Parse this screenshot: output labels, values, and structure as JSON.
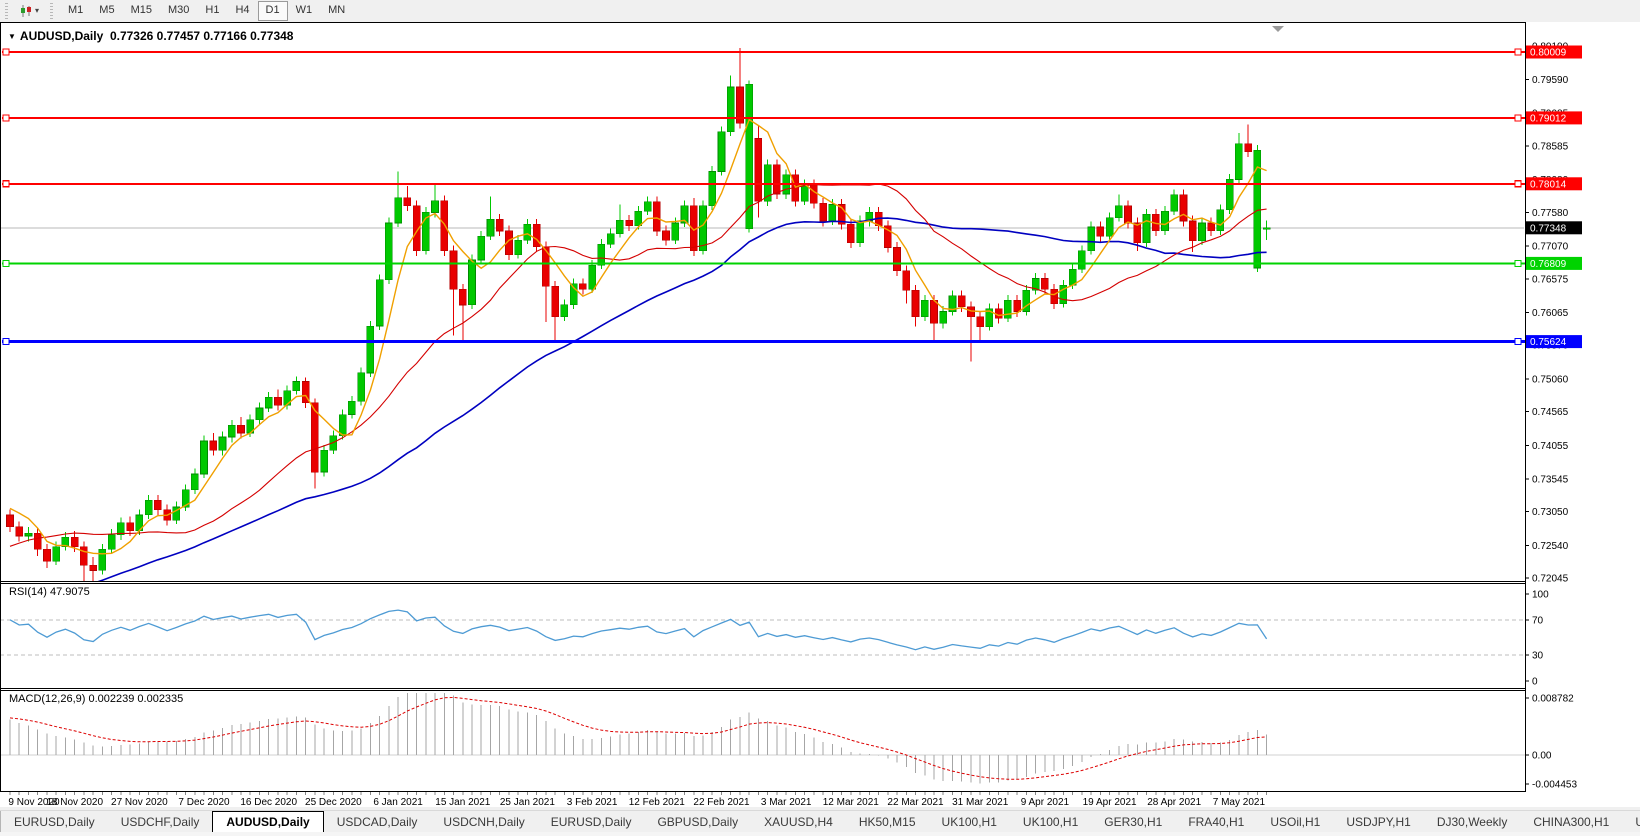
{
  "icons": {
    "collapse_caret": "▼",
    "dropdown_caret": "▾",
    "scroll_left": "◄",
    "scroll_right": "►"
  },
  "toolbar": {
    "timeframes": [
      {
        "label": "M1",
        "active": false
      },
      {
        "label": "M5",
        "active": false
      },
      {
        "label": "M15",
        "active": false
      },
      {
        "label": "M30",
        "active": false
      },
      {
        "label": "H1",
        "active": false
      },
      {
        "label": "H4",
        "active": false
      },
      {
        "label": "D1",
        "active": true
      },
      {
        "label": "W1",
        "active": false
      },
      {
        "label": "MN",
        "active": false
      }
    ]
  },
  "chart": {
    "title_symbol": "AUDUSD,Daily",
    "title_ohlc": "0.77326 0.77457 0.77166 0.77348",
    "price_axis_ticks": [
      "0.80100",
      "0.79590",
      "0.79085",
      "0.78585",
      "0.78080",
      "0.77580",
      "0.77070",
      "0.76575",
      "0.76065",
      "0.75570",
      "0.75060",
      "0.74565",
      "0.74055",
      "0.73545",
      "0.73050",
      "0.72540",
      "0.72045"
    ],
    "hlines": [
      {
        "label": "0.80009",
        "value": 0.80009,
        "color": "#FF0000",
        "width": 2
      },
      {
        "label": "0.79012",
        "value": 0.79012,
        "color": "#FF0000",
        "width": 2
      },
      {
        "label": "0.78014",
        "value": 0.78014,
        "color": "#FF0000",
        "width": 2
      },
      {
        "label": "0.76809",
        "value": 0.76809,
        "color": "#00D300",
        "width": 2
      },
      {
        "label": "0.75624",
        "value": 0.75624,
        "color": "#0000FF",
        "width": 3
      }
    ],
    "current_price": {
      "label": "0.77348",
      "value": 0.77348,
      "bg": "#000000"
    },
    "dates": [
      "9 Nov 2020",
      "18 Nov 2020",
      "27 Nov 2020",
      "7 Dec 2020",
      "16 Dec 2020",
      "25 Dec 2020",
      "6 Jan 2021",
      "15 Jan 2021",
      "25 Jan 2021",
      "3 Feb 2021",
      "12 Feb 2021",
      "22 Feb 2021",
      "3 Mar 2021",
      "12 Mar 2021",
      "22 Mar 2021",
      "31 Mar 2021",
      "9 Apr 2021",
      "19 Apr 2021",
      "28 Apr 2021",
      "7 May 2021"
    ],
    "date_tick_step": 7,
    "candles": [
      [
        0.73,
        0.7308,
        0.7274,
        0.7282
      ],
      [
        0.7282,
        0.729,
        0.726,
        0.7268
      ],
      [
        0.7268,
        0.7282,
        0.726,
        0.7272
      ],
      [
        0.7272,
        0.728,
        0.7238,
        0.7248
      ],
      [
        0.7248,
        0.7256,
        0.722,
        0.723
      ],
      [
        0.723,
        0.726,
        0.7224,
        0.7252
      ],
      [
        0.7252,
        0.7274,
        0.7246,
        0.7266
      ],
      [
        0.7266,
        0.7276,
        0.7244,
        0.7252
      ],
      [
        0.7252,
        0.726,
        0.717,
        0.7224
      ],
      [
        0.7224,
        0.7236,
        0.7185,
        0.7216
      ],
      [
        0.7216,
        0.7256,
        0.721,
        0.7248
      ],
      [
        0.7248,
        0.7279,
        0.7242,
        0.727
      ],
      [
        0.727,
        0.7296,
        0.7262,
        0.7288
      ],
      [
        0.7288,
        0.7298,
        0.7268,
        0.7276
      ],
      [
        0.7276,
        0.7308,
        0.727,
        0.73
      ],
      [
        0.73,
        0.733,
        0.7294,
        0.7322
      ],
      [
        0.7322,
        0.733,
        0.73,
        0.7308
      ],
      [
        0.7308,
        0.7316,
        0.7284,
        0.7292
      ],
      [
        0.7292,
        0.732,
        0.7286,
        0.7312
      ],
      [
        0.7312,
        0.7346,
        0.7306,
        0.7338
      ],
      [
        0.7338,
        0.737,
        0.7332,
        0.7362
      ],
      [
        0.7362,
        0.742,
        0.7356,
        0.7412
      ],
      [
        0.7412,
        0.7424,
        0.739,
        0.7398
      ],
      [
        0.7398,
        0.7426,
        0.739,
        0.7418
      ],
      [
        0.7418,
        0.7444,
        0.741,
        0.7436
      ],
      [
        0.7436,
        0.7448,
        0.7416,
        0.7424
      ],
      [
        0.7424,
        0.7452,
        0.7418,
        0.7444
      ],
      [
        0.7444,
        0.747,
        0.7438,
        0.7462
      ],
      [
        0.7462,
        0.7486,
        0.7456,
        0.7478
      ],
      [
        0.7478,
        0.749,
        0.7458,
        0.7466
      ],
      [
        0.7466,
        0.7496,
        0.746,
        0.7488
      ],
      [
        0.7488,
        0.751,
        0.7482,
        0.7502
      ],
      [
        0.7502,
        0.7508,
        0.7462,
        0.747
      ],
      [
        0.747,
        0.7476,
        0.734,
        0.7365
      ],
      [
        0.7365,
        0.7406,
        0.7358,
        0.7398
      ],
      [
        0.7398,
        0.7428,
        0.7392,
        0.742
      ],
      [
        0.742,
        0.746,
        0.7414,
        0.7452
      ],
      [
        0.7452,
        0.748,
        0.7446,
        0.7472
      ],
      [
        0.7472,
        0.7523,
        0.7466,
        0.7515
      ],
      [
        0.7515,
        0.7594,
        0.7509,
        0.7586
      ],
      [
        0.7586,
        0.7664,
        0.758,
        0.7656
      ],
      [
        0.7656,
        0.775,
        0.765,
        0.7742
      ],
      [
        0.7742,
        0.782,
        0.7736,
        0.778
      ],
      [
        0.778,
        0.7798,
        0.776,
        0.7768
      ],
      [
        0.7768,
        0.7776,
        0.7692,
        0.77
      ],
      [
        0.77,
        0.7766,
        0.7694,
        0.7758
      ],
      [
        0.7758,
        0.78,
        0.775,
        0.7776
      ],
      [
        0.7776,
        0.7784,
        0.7692,
        0.77
      ],
      [
        0.77,
        0.7708,
        0.7572,
        0.7642
      ],
      [
        0.7642,
        0.765,
        0.756,
        0.7618
      ],
      [
        0.7618,
        0.7694,
        0.7612,
        0.7686
      ],
      [
        0.7686,
        0.773,
        0.768,
        0.7722
      ],
      [
        0.7722,
        0.7782,
        0.7716,
        0.7748
      ],
      [
        0.7748,
        0.7756,
        0.7722,
        0.773
      ],
      [
        0.773,
        0.7738,
        0.7686,
        0.7694
      ],
      [
        0.7694,
        0.7724,
        0.7688,
        0.7716
      ],
      [
        0.7716,
        0.7748,
        0.771,
        0.774
      ],
      [
        0.774,
        0.7748,
        0.7698,
        0.7706
      ],
      [
        0.7706,
        0.7714,
        0.7592,
        0.7646
      ],
      [
        0.7646,
        0.7654,
        0.7564,
        0.76
      ],
      [
        0.76,
        0.7626,
        0.7594,
        0.7618
      ],
      [
        0.7618,
        0.7658,
        0.7612,
        0.765
      ],
      [
        0.765,
        0.7658,
        0.7634,
        0.7642
      ],
      [
        0.7642,
        0.7686,
        0.7636,
        0.7678
      ],
      [
        0.7678,
        0.7718,
        0.7672,
        0.771
      ],
      [
        0.771,
        0.7734,
        0.7704,
        0.7726
      ],
      [
        0.7726,
        0.777,
        0.772,
        0.7746
      ],
      [
        0.7746,
        0.7754,
        0.773,
        0.7738
      ],
      [
        0.7738,
        0.7768,
        0.7732,
        0.776
      ],
      [
        0.776,
        0.7782,
        0.7754,
        0.7774
      ],
      [
        0.7774,
        0.7782,
        0.7722,
        0.773
      ],
      [
        0.773,
        0.7738,
        0.7708,
        0.7716
      ],
      [
        0.7716,
        0.775,
        0.771,
        0.7742
      ],
      [
        0.7742,
        0.7776,
        0.7736,
        0.7768
      ],
      [
        0.7768,
        0.778,
        0.7692,
        0.77
      ],
      [
        0.77,
        0.7776,
        0.7694,
        0.7768
      ],
      [
        0.7768,
        0.7828,
        0.7762,
        0.782
      ],
      [
        0.782,
        0.7888,
        0.7814,
        0.788
      ],
      [
        0.788,
        0.7965,
        0.7874,
        0.7948
      ],
      [
        0.7948,
        0.8007,
        0.7885,
        0.7893
      ],
      [
        0.7733,
        0.7958,
        0.7728,
        0.7952
      ],
      [
        0.787,
        0.789,
        0.775,
        0.7775
      ],
      [
        0.7775,
        0.7838,
        0.7768,
        0.783
      ],
      [
        0.783,
        0.7838,
        0.7778,
        0.7786
      ],
      [
        0.7786,
        0.7823,
        0.7778,
        0.7815
      ],
      [
        0.7815,
        0.7823,
        0.7767,
        0.7775
      ],
      [
        0.7775,
        0.7808,
        0.7769,
        0.78
      ],
      [
        0.78,
        0.7808,
        0.7764,
        0.7772
      ],
      [
        0.7772,
        0.778,
        0.7737,
        0.7745
      ],
      [
        0.7745,
        0.7778,
        0.7739,
        0.777
      ],
      [
        0.777,
        0.7778,
        0.7732,
        0.774
      ],
      [
        0.774,
        0.7748,
        0.7704,
        0.7712
      ],
      [
        0.7712,
        0.7753,
        0.7706,
        0.7745
      ],
      [
        0.7745,
        0.7766,
        0.7737,
        0.7758
      ],
      [
        0.7758,
        0.7766,
        0.773,
        0.7738
      ],
      [
        0.7738,
        0.7746,
        0.7697,
        0.7705
      ],
      [
        0.7705,
        0.7713,
        0.7662,
        0.767
      ],
      [
        0.767,
        0.7678,
        0.762,
        0.764
      ],
      [
        0.764,
        0.7648,
        0.7585,
        0.76
      ],
      [
        0.76,
        0.7633,
        0.7594,
        0.7625
      ],
      [
        0.7625,
        0.7633,
        0.7562,
        0.759
      ],
      [
        0.759,
        0.7616,
        0.7582,
        0.7608
      ],
      [
        0.7608,
        0.764,
        0.7602,
        0.7632
      ],
      [
        0.7632,
        0.764,
        0.7607,
        0.7615
      ],
      [
        0.7615,
        0.7623,
        0.7532,
        0.76
      ],
      [
        0.76,
        0.7608,
        0.756,
        0.7585
      ],
      [
        0.7585,
        0.762,
        0.7579,
        0.7612
      ],
      [
        0.7612,
        0.762,
        0.759,
        0.7598
      ],
      [
        0.7598,
        0.7633,
        0.7592,
        0.7625
      ],
      [
        0.7625,
        0.7633,
        0.76,
        0.7608
      ],
      [
        0.7608,
        0.7648,
        0.7602,
        0.764
      ],
      [
        0.764,
        0.7666,
        0.7634,
        0.7658
      ],
      [
        0.7658,
        0.7666,
        0.7634,
        0.7642
      ],
      [
        0.7642,
        0.765,
        0.7612,
        0.762
      ],
      [
        0.762,
        0.7656,
        0.7614,
        0.7648
      ],
      [
        0.7648,
        0.768,
        0.7642,
        0.7672
      ],
      [
        0.7672,
        0.7708,
        0.7666,
        0.77
      ],
      [
        0.77,
        0.7744,
        0.7694,
        0.7736
      ],
      [
        0.7736,
        0.7744,
        0.7714,
        0.7722
      ],
      [
        0.7722,
        0.7758,
        0.7716,
        0.775
      ],
      [
        0.775,
        0.7785,
        0.7744,
        0.7768
      ],
      [
        0.7768,
        0.7776,
        0.7734,
        0.7742
      ],
      [
        0.7742,
        0.775,
        0.77,
        0.7712
      ],
      [
        0.7712,
        0.7763,
        0.7706,
        0.7755
      ],
      [
        0.7755,
        0.7763,
        0.7722,
        0.773
      ],
      [
        0.773,
        0.7768,
        0.7724,
        0.776
      ],
      [
        0.776,
        0.7793,
        0.7754,
        0.7785
      ],
      [
        0.7785,
        0.7793,
        0.7737,
        0.7745
      ],
      [
        0.7745,
        0.7753,
        0.7698,
        0.7715
      ],
      [
        0.7715,
        0.775,
        0.7709,
        0.7742
      ],
      [
        0.7742,
        0.775,
        0.7722,
        0.773
      ],
      [
        0.773,
        0.777,
        0.7724,
        0.7762
      ],
      [
        0.7762,
        0.7816,
        0.7756,
        0.7808
      ],
      [
        0.7808,
        0.7878,
        0.7802,
        0.7862
      ],
      [
        0.7862,
        0.7891,
        0.7842,
        0.785
      ],
      [
        0.7674,
        0.786,
        0.7668,
        0.7852
      ],
      [
        0.77326,
        0.77457,
        0.77166,
        0.77348
      ]
    ]
  },
  "rsi": {
    "label": "RSI(14) 47.9075",
    "period": 14,
    "axis_ticks": [
      "100",
      "70",
      "30",
      "0"
    ],
    "levels": [
      70,
      30
    ]
  },
  "macd": {
    "label": "MACD(12,26,9) 0.002239 0.002335",
    "axis_ticks": [
      [
        "0.008782",
        0.008782
      ],
      [
        "0.00",
        0
      ],
      [
        "-0.004453",
        -0.004453
      ]
    ]
  },
  "tabs": {
    "active_index": 2,
    "items": [
      "EURUSD,Daily",
      "USDCHF,Daily",
      "AUDUSD,Daily",
      "USDCAD,Daily",
      "USDCNH,Daily",
      "EURUSD,Daily",
      "GBPUSD,Daily",
      "XAUUSD,H4",
      "HK50,M15",
      "UK100,H1",
      "UK100,H1",
      "GER30,H1",
      "FRA40,H1",
      "USOil,H1",
      "USDJPY,H1",
      "DJ30,Weekly",
      "CHINA300,H1",
      "USC"
    ]
  },
  "colors": {
    "bull": "#00C800",
    "bull_stroke": "#008A00",
    "bear": "#E80000",
    "bear_stroke": "#B40000",
    "ma_fast": "#F0A000",
    "ma_mid": "#D40000",
    "ma_slow": "#0000C0",
    "rsi_line": "#4E9BD4",
    "level_dash": "#BDBDBD",
    "macd_hist": "#A6A6A6",
    "macd_signal": "#DD0000",
    "current_line": "#B8B8B8",
    "axis_text": "#000000"
  }
}
